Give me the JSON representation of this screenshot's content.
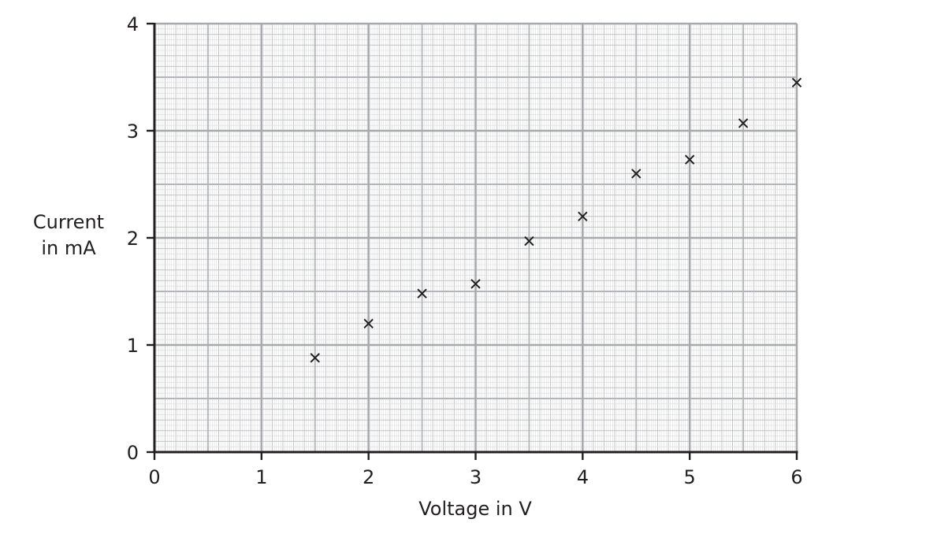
{
  "chart_data": {
    "type": "scatter",
    "title": "",
    "xlabel": "Voltage in V",
    "ylabel": [
      "Current",
      "in mA"
    ],
    "xlim": [
      0,
      6
    ],
    "ylim": [
      0,
      4
    ],
    "x_ticks": [
      "0",
      "1",
      "2",
      "3",
      "4",
      "5",
      "6"
    ],
    "y_ticks": [
      "0",
      "1",
      "2",
      "3",
      "4"
    ],
    "grid": true,
    "marker": "x",
    "points": [
      {
        "x": 1.5,
        "y": 0.88
      },
      {
        "x": 2.0,
        "y": 1.2
      },
      {
        "x": 2.5,
        "y": 1.48
      },
      {
        "x": 3.0,
        "y": 1.57
      },
      {
        "x": 3.5,
        "y": 1.97
      },
      {
        "x": 4.0,
        "y": 2.2
      },
      {
        "x": 4.5,
        "y": 2.6
      },
      {
        "x": 5.0,
        "y": 2.73
      },
      {
        "x": 5.5,
        "y": 3.07
      },
      {
        "x": 6.0,
        "y": 3.45
      }
    ]
  }
}
